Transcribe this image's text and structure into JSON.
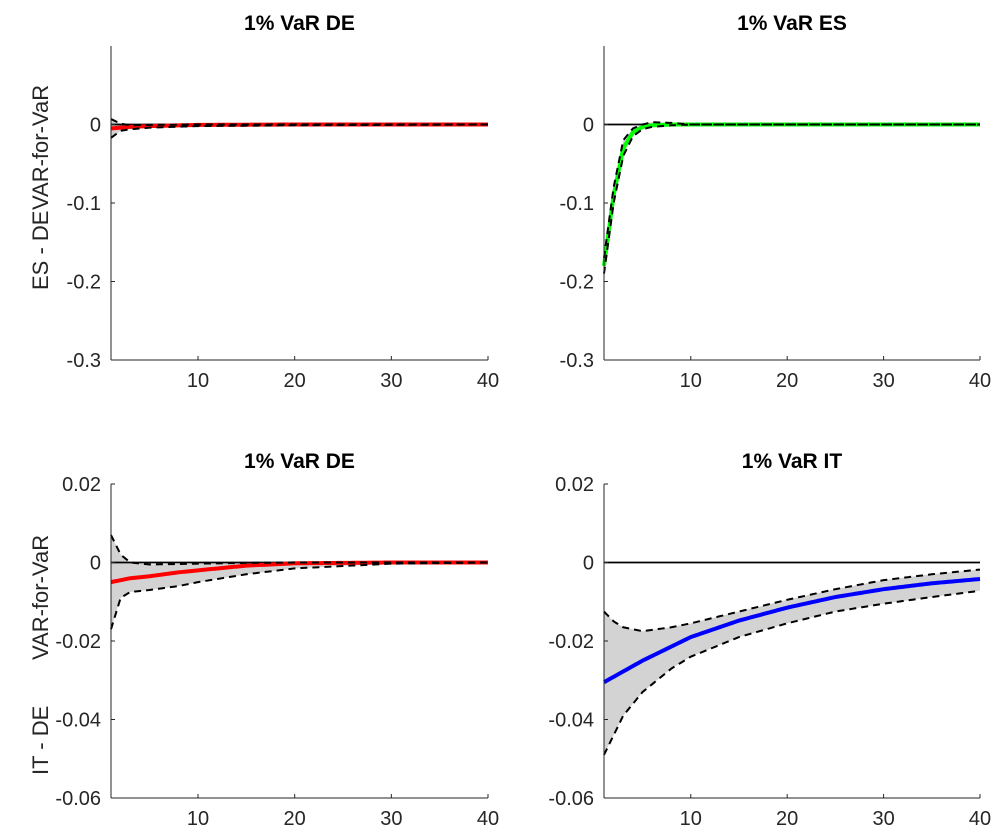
{
  "figure": {
    "row_labels": [
      {
        "line1": "ES - DE",
        "line2": "VAR-for-VaR"
      },
      {
        "line1": "IT - DE",
        "line2": "VAR-for-VaR"
      }
    ]
  },
  "chart_data": [
    {
      "type": "line",
      "title": "1% VaR DE",
      "xlabel": "",
      "ylabel": "",
      "xlim": [
        1,
        40
      ],
      "ylim": [
        -0.3,
        0.1
      ],
      "xticks": [
        10,
        20,
        30,
        40
      ],
      "yticks": [
        -0.3,
        -0.2,
        -0.1,
        0
      ],
      "ytick_labels": [
        "-0.3",
        "-0.2",
        "-0.1",
        "0"
      ],
      "grid": false,
      "zero_line": true,
      "series": [
        {
          "role": "median",
          "color": "#ff0000",
          "x": [
            1,
            2,
            3,
            5,
            10,
            20,
            40
          ],
          "y": [
            -0.005,
            -0.004,
            -0.003,
            -0.002,
            -0.0005,
            0.0,
            0.0
          ]
        },
        {
          "role": "upper",
          "color": "#000000",
          "dashed": true,
          "x": [
            1,
            2,
            3,
            5,
            10,
            20,
            40
          ],
          "y": [
            0.007,
            0.001,
            -0.001,
            -0.0005,
            0.0,
            0.0,
            0.0
          ]
        },
        {
          "role": "lower",
          "color": "#000000",
          "dashed": true,
          "x": [
            1,
            2,
            3,
            5,
            10,
            20,
            40
          ],
          "y": [
            -0.017,
            -0.008,
            -0.006,
            -0.004,
            -0.002,
            -0.001,
            0.0
          ]
        }
      ]
    },
    {
      "type": "line",
      "title": "1% VaR ES",
      "xlabel": "",
      "ylabel": "",
      "xlim": [
        1,
        40
      ],
      "ylim": [
        -0.3,
        0.1
      ],
      "xticks": [
        10,
        20,
        30,
        40
      ],
      "yticks": [
        -0.3,
        -0.2,
        -0.1,
        0
      ],
      "ytick_labels": [
        "-0.3",
        "-0.2",
        "-0.1",
        "0"
      ],
      "grid": false,
      "zero_line": true,
      "series": [
        {
          "role": "median",
          "color": "#00ff00",
          "x": [
            1,
            2,
            3,
            4,
            5,
            6,
            8,
            10,
            40
          ],
          "y": [
            -0.18,
            -0.09,
            -0.03,
            -0.01,
            -0.003,
            -0.001,
            0.0,
            0.0,
            0.0
          ]
        },
        {
          "role": "upper",
          "color": "#000000",
          "dashed": true,
          "x": [
            1,
            2,
            3,
            4,
            5,
            6,
            8,
            10,
            40
          ],
          "y": [
            -0.17,
            -0.08,
            -0.02,
            -0.005,
            0.0,
            0.003,
            0.002,
            0.0,
            0.0
          ]
        },
        {
          "role": "lower",
          "color": "#000000",
          "dashed": true,
          "x": [
            1,
            2,
            3,
            4,
            5,
            6,
            8,
            10,
            40
          ],
          "y": [
            -0.19,
            -0.1,
            -0.04,
            -0.015,
            -0.006,
            -0.003,
            -0.001,
            0.0,
            0.0
          ]
        }
      ]
    },
    {
      "type": "line",
      "title": "1% VaR DE",
      "xlabel": "",
      "ylabel": "",
      "xlim": [
        1,
        40
      ],
      "ylim": [
        -0.06,
        0.02
      ],
      "xticks": [
        10,
        20,
        30,
        40
      ],
      "yticks": [
        -0.06,
        -0.04,
        -0.02,
        0,
        0.02
      ],
      "ytick_labels": [
        "-0.06",
        "-0.04",
        "-0.02",
        "0",
        "0.02"
      ],
      "grid": false,
      "zero_line": true,
      "series": [
        {
          "role": "median",
          "color": "#ff0000",
          "x": [
            1,
            3,
            5,
            8,
            10,
            15,
            20,
            30,
            40
          ],
          "y": [
            -0.005,
            -0.004,
            -0.0035,
            -0.0025,
            -0.002,
            -0.0008,
            -0.0002,
            0.0,
            0.0
          ]
        },
        {
          "role": "upper",
          "color": "#000000",
          "dashed": true,
          "x": [
            1,
            2,
            3,
            5,
            10,
            15,
            20,
            30,
            40
          ],
          "y": [
            0.007,
            0.002,
            0.0,
            -0.0005,
            -0.0003,
            -0.0001,
            0.0,
            0.0,
            0.0
          ]
        },
        {
          "role": "lower",
          "color": "#000000",
          "dashed": true,
          "x": [
            1,
            2,
            3,
            5,
            8,
            10,
            15,
            20,
            30,
            40
          ],
          "y": [
            -0.017,
            -0.009,
            -0.0075,
            -0.007,
            -0.006,
            -0.005,
            -0.003,
            -0.0015,
            -0.0003,
            0.0
          ]
        }
      ]
    },
    {
      "type": "line",
      "title": "1% VaR IT",
      "xlabel": "",
      "ylabel": "",
      "xlim": [
        1,
        40
      ],
      "ylim": [
        -0.06,
        0.02
      ],
      "xticks": [
        10,
        20,
        30,
        40
      ],
      "yticks": [
        -0.06,
        -0.04,
        -0.02,
        0,
        0.02
      ],
      "ytick_labels": [
        "-0.06",
        "-0.04",
        "-0.02",
        "0",
        "0.02"
      ],
      "grid": false,
      "zero_line": true,
      "series": [
        {
          "role": "median",
          "color": "#0000ff",
          "x": [
            1,
            5,
            10,
            15,
            20,
            25,
            30,
            35,
            40
          ],
          "y": [
            -0.0305,
            -0.025,
            -0.019,
            -0.0148,
            -0.0115,
            -0.0088,
            -0.0068,
            -0.0053,
            -0.0042
          ]
        },
        {
          "role": "upper",
          "color": "#000000",
          "dashed": true,
          "x": [
            1,
            2,
            3,
            5,
            8,
            10,
            15,
            20,
            25,
            30,
            35,
            40
          ],
          "y": [
            -0.0125,
            -0.015,
            -0.0165,
            -0.0175,
            -0.0165,
            -0.0155,
            -0.0125,
            -0.0095,
            -0.0068,
            -0.0045,
            -0.003,
            -0.0018
          ]
        },
        {
          "role": "lower",
          "color": "#000000",
          "dashed": true,
          "x": [
            1,
            3,
            5,
            8,
            10,
            15,
            20,
            25,
            30,
            35,
            40
          ],
          "y": [
            -0.049,
            -0.039,
            -0.033,
            -0.027,
            -0.024,
            -0.019,
            -0.0155,
            -0.0125,
            -0.0105,
            -0.0088,
            -0.0072
          ]
        }
      ]
    }
  ]
}
